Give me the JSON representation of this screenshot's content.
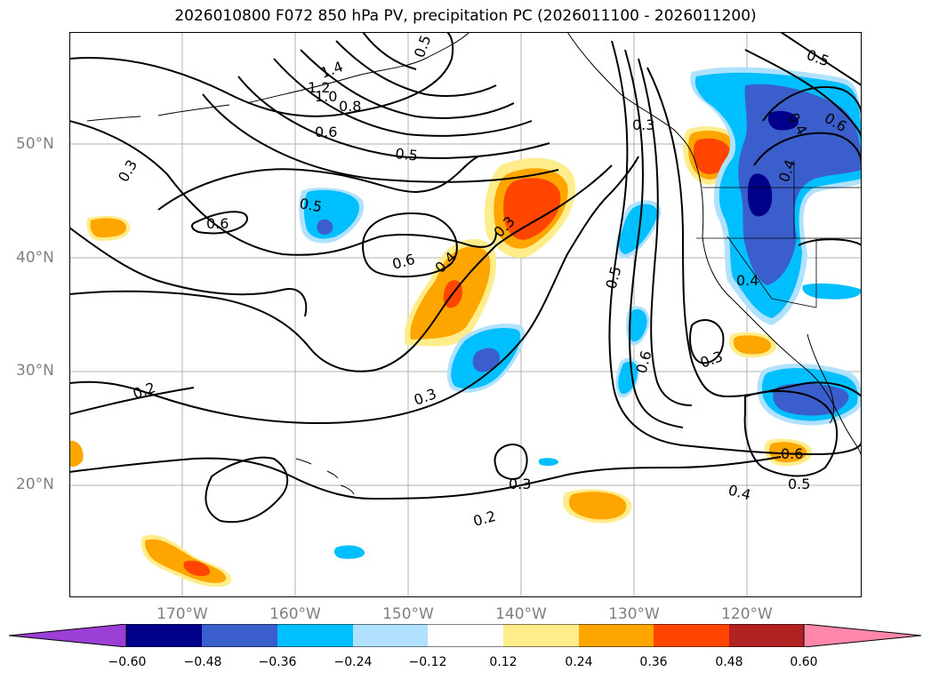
{
  "title": "2026010800 F072 850 hPa PV, precipitation PC (2026011100 - 2026011200)",
  "map": {
    "lat_ticks": [
      "50°N",
      "40°N",
      "30°N",
      "20°N"
    ],
    "lon_ticks": [
      "170°W",
      "160°W",
      "150°W",
      "140°W",
      "130°W",
      "120°W"
    ],
    "contour_labels": [
      "1.4",
      "1.2",
      "1.0",
      "0.8",
      "0.6",
      "0.5",
      "0.3",
      "0.5",
      "0.6",
      "0.6",
      "0.4",
      "0.3",
      "0.2",
      "0.3",
      "0.3",
      "0.2",
      "0.5",
      "0.6",
      "0.3",
      "0.4",
      "0.4",
      "0.5",
      "0.6",
      "0.5",
      "0.3",
      "0.4",
      "0.6",
      "0.5",
      "0.4"
    ]
  },
  "colorbar": {
    "ticks": [
      "−0.60",
      "−0.48",
      "−0.36",
      "−0.24",
      "−0.12",
      "0.12",
      "0.24",
      "0.36",
      "0.48",
      "0.60"
    ],
    "colors": {
      "under": "#9b3fd6",
      "b1": "#00008b",
      "b2": "#3a5fcd",
      "b3": "#00bfff",
      "b4": "#b0e2ff",
      "b5": "#ffffff",
      "b6": "#ffec8b",
      "b7": "#ffa500",
      "b8": "#ff4500",
      "b9": "#b22222",
      "over": "#ff88aa"
    }
  }
}
